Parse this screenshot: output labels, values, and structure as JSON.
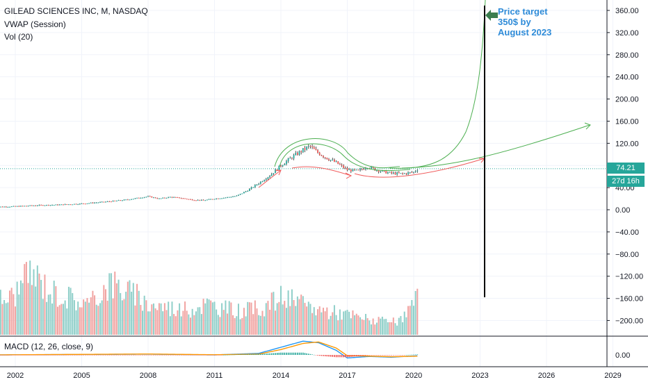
{
  "legend": {
    "title": "GILEAD SCIENCES INC, M, NASDAQ",
    "vwap": "VWAP (Session)",
    "vol": "Vol (20)",
    "macd": "MACD (12, 26, close, 9)"
  },
  "annotation": {
    "line1": "Price target",
    "line2": "350$ by",
    "line3": "August 2023"
  },
  "price_badge": "74.21",
  "countdown_badge": "27d 16h",
  "colors": {
    "up": "#26a69a",
    "down": "#ef5350",
    "vol_up": "#8fcfc9",
    "vol_down": "#f1a3a1",
    "green_drawing": "#4caf50",
    "red_drawing": "#f05a5a",
    "price_line": "#26a69a",
    "macd": "#2196f3",
    "signal": "#ff9800",
    "annotation_text": "#2e8bd8",
    "arrow": "#3b7d4f"
  },
  "chart_data": [
    {
      "type": "line",
      "title": "GILEAD SCIENCES INC, M, NASDAQ",
      "x_ticks": [
        "2002",
        "2005",
        "2008",
        "2011",
        "2014",
        "2017",
        "2020",
        "2023",
        "2026",
        "2029"
      ],
      "y_ticks": [
        "360.00",
        "320.00",
        "280.00",
        "240.00",
        "200.00",
        "160.00",
        "120.00",
        "80.00",
        "40.00",
        "0.00",
        "−40.00",
        "−80.00",
        "−120.00",
        "−160.00",
        "−200.00"
      ],
      "ylim": [
        -220,
        380
      ],
      "last_price": 74.21,
      "series": [
        {
          "x": [
            2001.0,
            2002.0,
            2003.0,
            2004.0,
            2005.0,
            2006.0,
            2007.0,
            2008.0,
            2008.5,
            2009.0,
            2009.5,
            2010.0,
            2010.5,
            2011.0,
            2011.5,
            2012.0,
            2012.5,
            2013.0,
            2013.5,
            2014.0,
            2014.5,
            2015.0,
            2015.3,
            2015.6,
            2016.0,
            2016.5,
            2017.0,
            2017.5,
            2017.9,
            2018.3,
            2018.7,
            2019.0,
            2019.5,
            2020.0,
            2020.2
          ],
          "values": [
            5,
            6,
            8,
            9,
            11,
            14,
            18,
            24,
            20,
            23,
            21,
            18,
            17,
            20,
            22,
            25,
            35,
            48,
            62,
            80,
            95,
            108,
            115,
            105,
            95,
            85,
            72,
            70,
            78,
            72,
            68,
            66,
            65,
            68,
            74
          ]
        }
      ],
      "annotations": [
        "Price target",
        "350$ by",
        "August 2023"
      ]
    },
    {
      "type": "bar",
      "title": "Vol (20)",
      "x_ticks": [
        "2002",
        "2005",
        "2008",
        "2011",
        "2014",
        "2017",
        "2020"
      ],
      "values_relative": [
        0.55,
        0.62,
        1.0,
        0.7,
        0.6,
        0.48,
        0.85,
        0.7,
        0.5,
        0.45,
        0.4,
        0.5,
        0.42,
        0.38,
        0.45,
        0.62,
        0.48,
        0.4,
        0.35,
        0.28,
        0.22,
        0.2,
        0.6
      ]
    },
    {
      "type": "line",
      "title": "MACD (12, 26, close, 9)",
      "y_ticks": [
        "0.00"
      ],
      "series": [
        {
          "name": "MACD",
          "x": [
            2001.0,
            2008.0,
            2011.0,
            2013.0,
            2014.0,
            2015.0,
            2015.7,
            2016.5,
            2017.0,
            2018.0,
            2019.0,
            2020.2
          ],
          "values": [
            0,
            0.5,
            0,
            1.0,
            5.0,
            9.0,
            8.0,
            3.0,
            -2.0,
            -1.0,
            -1.5,
            -0.5
          ]
        },
        {
          "name": "Signal",
          "x": [
            2001.0,
            2008.0,
            2011.0,
            2013.0,
            2014.0,
            2015.0,
            2015.7,
            2016.5,
            2017.0,
            2018.0,
            2019.0,
            2020.2
          ],
          "values": [
            0,
            0.6,
            0.1,
            0.5,
            3.5,
            7.5,
            8.5,
            4.5,
            -0.5,
            -0.8,
            -1.2,
            -0.8
          ]
        }
      ]
    }
  ]
}
